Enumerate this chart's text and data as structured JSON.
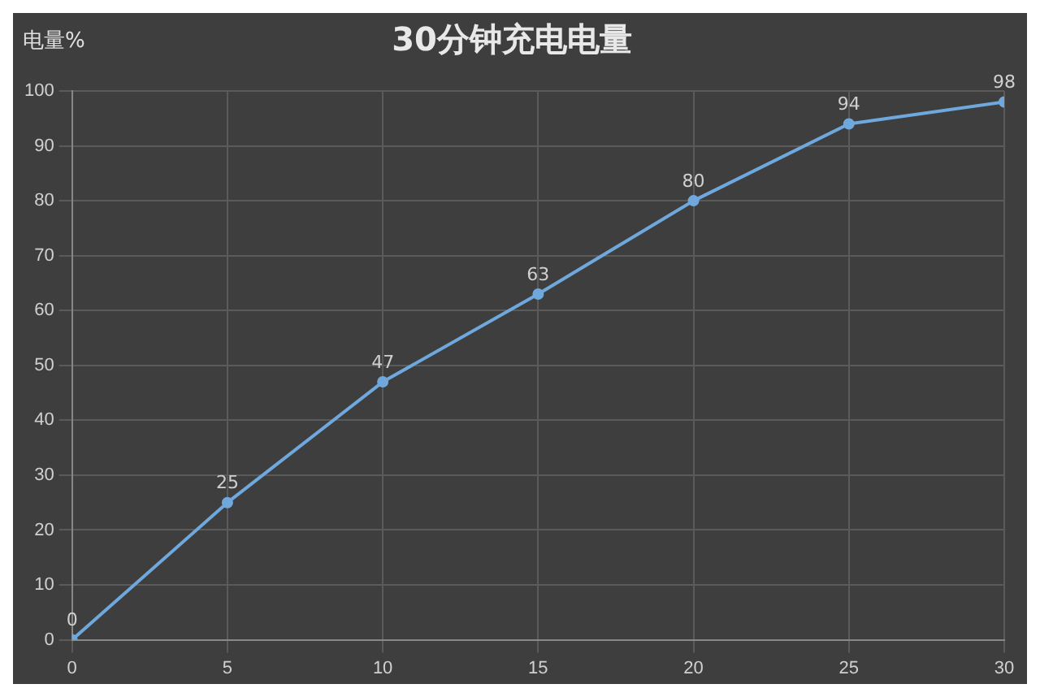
{
  "chart_data": {
    "type": "line",
    "title": "30分钟充电电量",
    "ylabel": "电量%",
    "x": [
      0,
      5,
      10,
      15,
      20,
      25,
      30
    ],
    "series": [
      {
        "color": "#6fa8dc",
        "values": [
          0,
          25,
          47,
          63,
          80,
          94,
          98
        ]
      }
    ],
    "xlim": [
      0,
      30
    ],
    "xticks": [
      0,
      5,
      10,
      15,
      20,
      25,
      30
    ],
    "ylim": [
      0,
      100
    ],
    "yticks": [
      0,
      10,
      20,
      30,
      40,
      50,
      60,
      70,
      80,
      90,
      100
    ],
    "grid": true,
    "legend": false,
    "marker": "circle",
    "line_style": "solid",
    "data_labels": true
  }
}
